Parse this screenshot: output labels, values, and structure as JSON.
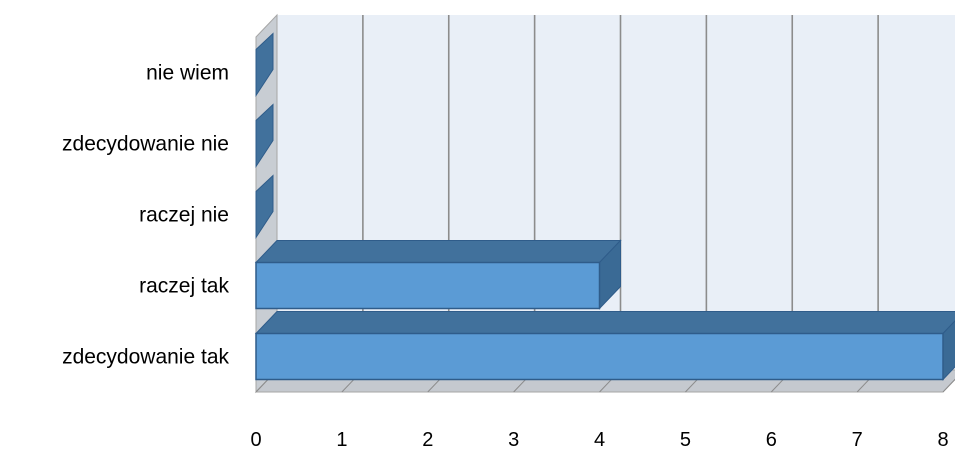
{
  "chart_data": {
    "type": "bar",
    "orientation": "horizontal",
    "style": "3d",
    "title": "",
    "xlabel": "",
    "ylabel": "",
    "categories": [
      "zdecydowanie  tak",
      "raczej tak",
      "raczej nie",
      "zdecydowanie nie",
      "nie wiem"
    ],
    "values": [
      8,
      4,
      0,
      0,
      0
    ],
    "xlim": [
      0,
      8
    ],
    "xticks": [
      "0",
      "1",
      "2",
      "3",
      "4",
      "5",
      "6",
      "7",
      "8"
    ],
    "grid": true,
    "legend": "none",
    "colors": {
      "bar_front": "#5B9BD5",
      "bar_top": "#41719C",
      "bar_side": "#3A6A95",
      "bar_border": "#2F5C8A",
      "back_wall": "#E9EFF7",
      "side_wall": "#C8CDD3",
      "floor": "#C5C9CF",
      "gridline": "#8C8C8C",
      "wall_edge": "#A6A6A6"
    }
  }
}
